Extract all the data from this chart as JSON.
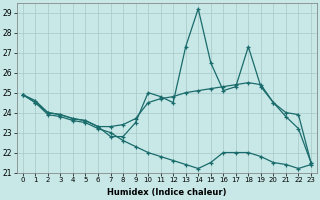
{
  "xlabel": "Humidex (Indice chaleur)",
  "xlim": [
    -0.5,
    23.5
  ],
  "ylim": [
    21,
    29.5
  ],
  "yticks": [
    21,
    22,
    23,
    24,
    25,
    26,
    27,
    28,
    29
  ],
  "xticks": [
    0,
    1,
    2,
    3,
    4,
    5,
    6,
    7,
    8,
    9,
    10,
    11,
    12,
    13,
    14,
    15,
    16,
    17,
    18,
    19,
    20,
    21,
    22,
    23
  ],
  "background_color": "#c8e8e8",
  "grid_color": "#a8c8c8",
  "line_color": "#1a6b6b",
  "line1": [
    24.9,
    24.6,
    24.0,
    23.9,
    23.7,
    23.6,
    23.3,
    22.8,
    22.8,
    23.5,
    25.0,
    24.8,
    24.5,
    27.3,
    29.2,
    26.5,
    25.1,
    25.3,
    27.3,
    25.3,
    24.5,
    23.8,
    23.2,
    21.5
  ],
  "line2": [
    24.9,
    24.5,
    24.0,
    23.9,
    23.7,
    23.6,
    23.3,
    23.3,
    23.4,
    23.7,
    24.5,
    24.7,
    24.8,
    25.0,
    25.1,
    25.2,
    25.3,
    25.4,
    25.5,
    25.4,
    24.5,
    24.0,
    23.9,
    21.5
  ],
  "line3": [
    24.9,
    24.5,
    23.9,
    23.8,
    23.6,
    23.5,
    23.2,
    23.0,
    22.6,
    22.3,
    22.0,
    21.8,
    21.6,
    21.4,
    21.2,
    21.5,
    22.0,
    22.0,
    22.0,
    21.8,
    21.5,
    21.4,
    21.2,
    21.4
  ]
}
